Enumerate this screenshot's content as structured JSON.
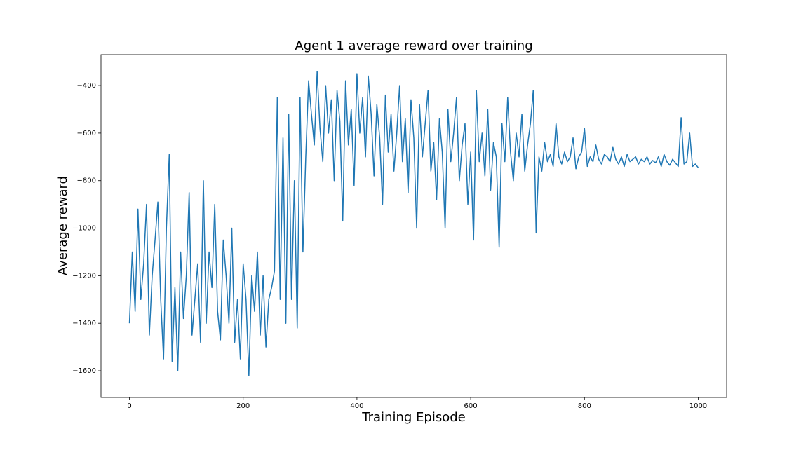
{
  "chart_data": {
    "type": "line",
    "title": "Agent 1 average reward over training",
    "xlabel": "Training Episode",
    "ylabel": "Average reward",
    "color": "#1f77b4",
    "x": [
      0,
      5,
      10,
      15,
      20,
      25,
      30,
      35,
      40,
      45,
      50,
      55,
      60,
      65,
      70,
      75,
      80,
      85,
      90,
      95,
      100,
      105,
      110,
      115,
      120,
      125,
      130,
      135,
      140,
      145,
      150,
      155,
      160,
      165,
      170,
      175,
      180,
      185,
      190,
      195,
      200,
      205,
      210,
      215,
      220,
      225,
      230,
      235,
      240,
      245,
      250,
      255,
      260,
      265,
      270,
      275,
      280,
      285,
      290,
      295,
      300,
      305,
      310,
      315,
      320,
      325,
      330,
      335,
      340,
      345,
      350,
      355,
      360,
      365,
      370,
      375,
      380,
      385,
      390,
      395,
      400,
      405,
      410,
      415,
      420,
      425,
      430,
      435,
      440,
      445,
      450,
      455,
      460,
      465,
      470,
      475,
      480,
      485,
      490,
      495,
      500,
      505,
      510,
      515,
      520,
      525,
      530,
      535,
      540,
      545,
      550,
      555,
      560,
      565,
      570,
      575,
      580,
      585,
      590,
      595,
      600,
      605,
      610,
      615,
      620,
      625,
      630,
      635,
      640,
      645,
      650,
      655,
      660,
      665,
      670,
      675,
      680,
      685,
      690,
      695,
      700,
      705,
      710,
      715,
      720,
      725,
      730,
      735,
      740,
      745,
      750,
      755,
      760,
      765,
      770,
      775,
      780,
      785,
      790,
      795,
      800,
      805,
      810,
      815,
      820,
      825,
      830,
      835,
      840,
      845,
      850,
      855,
      860,
      865,
      870,
      875,
      880,
      885,
      890,
      895,
      900,
      905,
      910,
      915,
      920,
      925,
      930,
      935,
      940,
      945,
      950,
      955,
      960,
      965,
      970,
      975,
      980,
      985,
      990,
      995,
      1000
    ],
    "values": [
      -1400,
      -1100,
      -1350,
      -920,
      -1300,
      -1150,
      -900,
      -1450,
      -1200,
      -1050,
      -890,
      -1300,
      -1550,
      -1000,
      -690,
      -1560,
      -1250,
      -1600,
      -1100,
      -1380,
      -1200,
      -850,
      -1450,
      -1300,
      -1150,
      -1480,
      -800,
      -1400,
      -1100,
      -1250,
      -900,
      -1350,
      -1470,
      -1050,
      -1200,
      -1400,
      -1000,
      -1480,
      -1300,
      -1550,
      -1150,
      -1300,
      -1620,
      -1200,
      -1350,
      -1100,
      -1450,
      -1200,
      -1500,
      -1300,
      -1250,
      -1180,
      -450,
      -1300,
      -620,
      -1400,
      -520,
      -1300,
      -800,
      -1420,
      -450,
      -1100,
      -700,
      -380,
      -520,
      -650,
      -340,
      -580,
      -720,
      -400,
      -600,
      -460,
      -800,
      -420,
      -550,
      -970,
      -380,
      -650,
      -500,
      -820,
      -350,
      -600,
      -450,
      -700,
      -360,
      -520,
      -780,
      -480,
      -620,
      -900,
      -440,
      -680,
      -520,
      -760,
      -600,
      -400,
      -720,
      -540,
      -850,
      -460,
      -620,
      -1000,
      -480,
      -700,
      -560,
      -420,
      -760,
      -640,
      -880,
      -540,
      -680,
      -1000,
      -500,
      -720,
      -600,
      -450,
      -800,
      -650,
      -560,
      -900,
      -680,
      -1050,
      -420,
      -720,
      -600,
      -780,
      -500,
      -840,
      -640,
      -700,
      -1080,
      -560,
      -720,
      -450,
      -680,
      -800,
      -600,
      -700,
      -520,
      -760,
      -650,
      -560,
      -420,
      -1020,
      -700,
      -760,
      -640,
      -720,
      -690,
      -740,
      -560,
      -700,
      -730,
      -680,
      -720,
      -700,
      -620,
      -750,
      -700,
      -680,
      -580,
      -740,
      -700,
      -720,
      -650,
      -710,
      -730,
      -690,
      -700,
      -720,
      -660,
      -710,
      -730,
      -700,
      -740,
      -690,
      -720,
      -710,
      -700,
      -730,
      -710,
      -720,
      -700,
      -730,
      -715,
      -725,
      -700,
      -740,
      -690,
      -720,
      -735,
      -710,
      -725,
      -740,
      -535,
      -730,
      -720,
      -600,
      -740,
      -730,
      -745
    ],
    "xlim": [
      -50,
      1050
    ],
    "ylim": [
      -1712,
      -270
    ],
    "xticks": [
      0,
      200,
      400,
      600,
      800,
      1000
    ],
    "yticks": [
      {
        "value": -1600,
        "label": "−1600"
      },
      {
        "value": -1400,
        "label": "−1400"
      },
      {
        "value": -1200,
        "label": "−1200"
      },
      {
        "value": -1000,
        "label": "−1000"
      },
      {
        "value": -800,
        "label": "−800"
      },
      {
        "value": -600,
        "label": "−600"
      },
      {
        "value": -400,
        "label": "−400"
      }
    ]
  }
}
